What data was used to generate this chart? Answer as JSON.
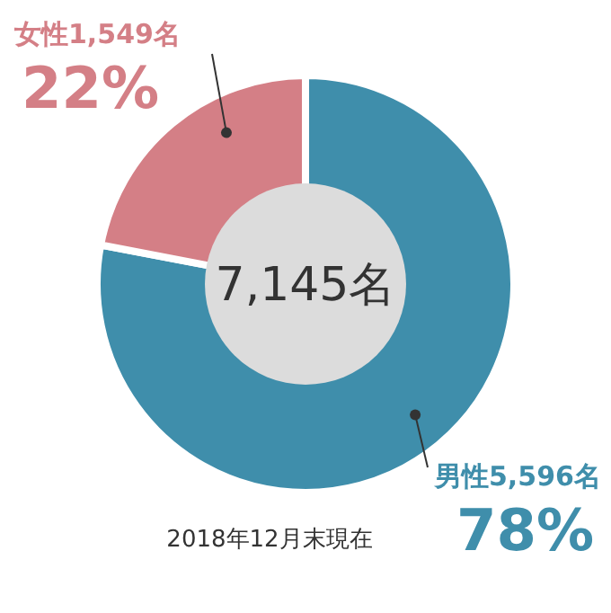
{
  "chart_data": {
    "type": "donut",
    "categories": [
      "男性5,596名",
      "女性1,549名"
    ],
    "values": [
      78,
      22
    ],
    "value_labels": [
      "78%",
      "22%"
    ],
    "colors": [
      "#3f8eab",
      "#d47f86"
    ],
    "annotations": [
      "7,145名",
      "2018年12月末現在"
    ]
  }
}
